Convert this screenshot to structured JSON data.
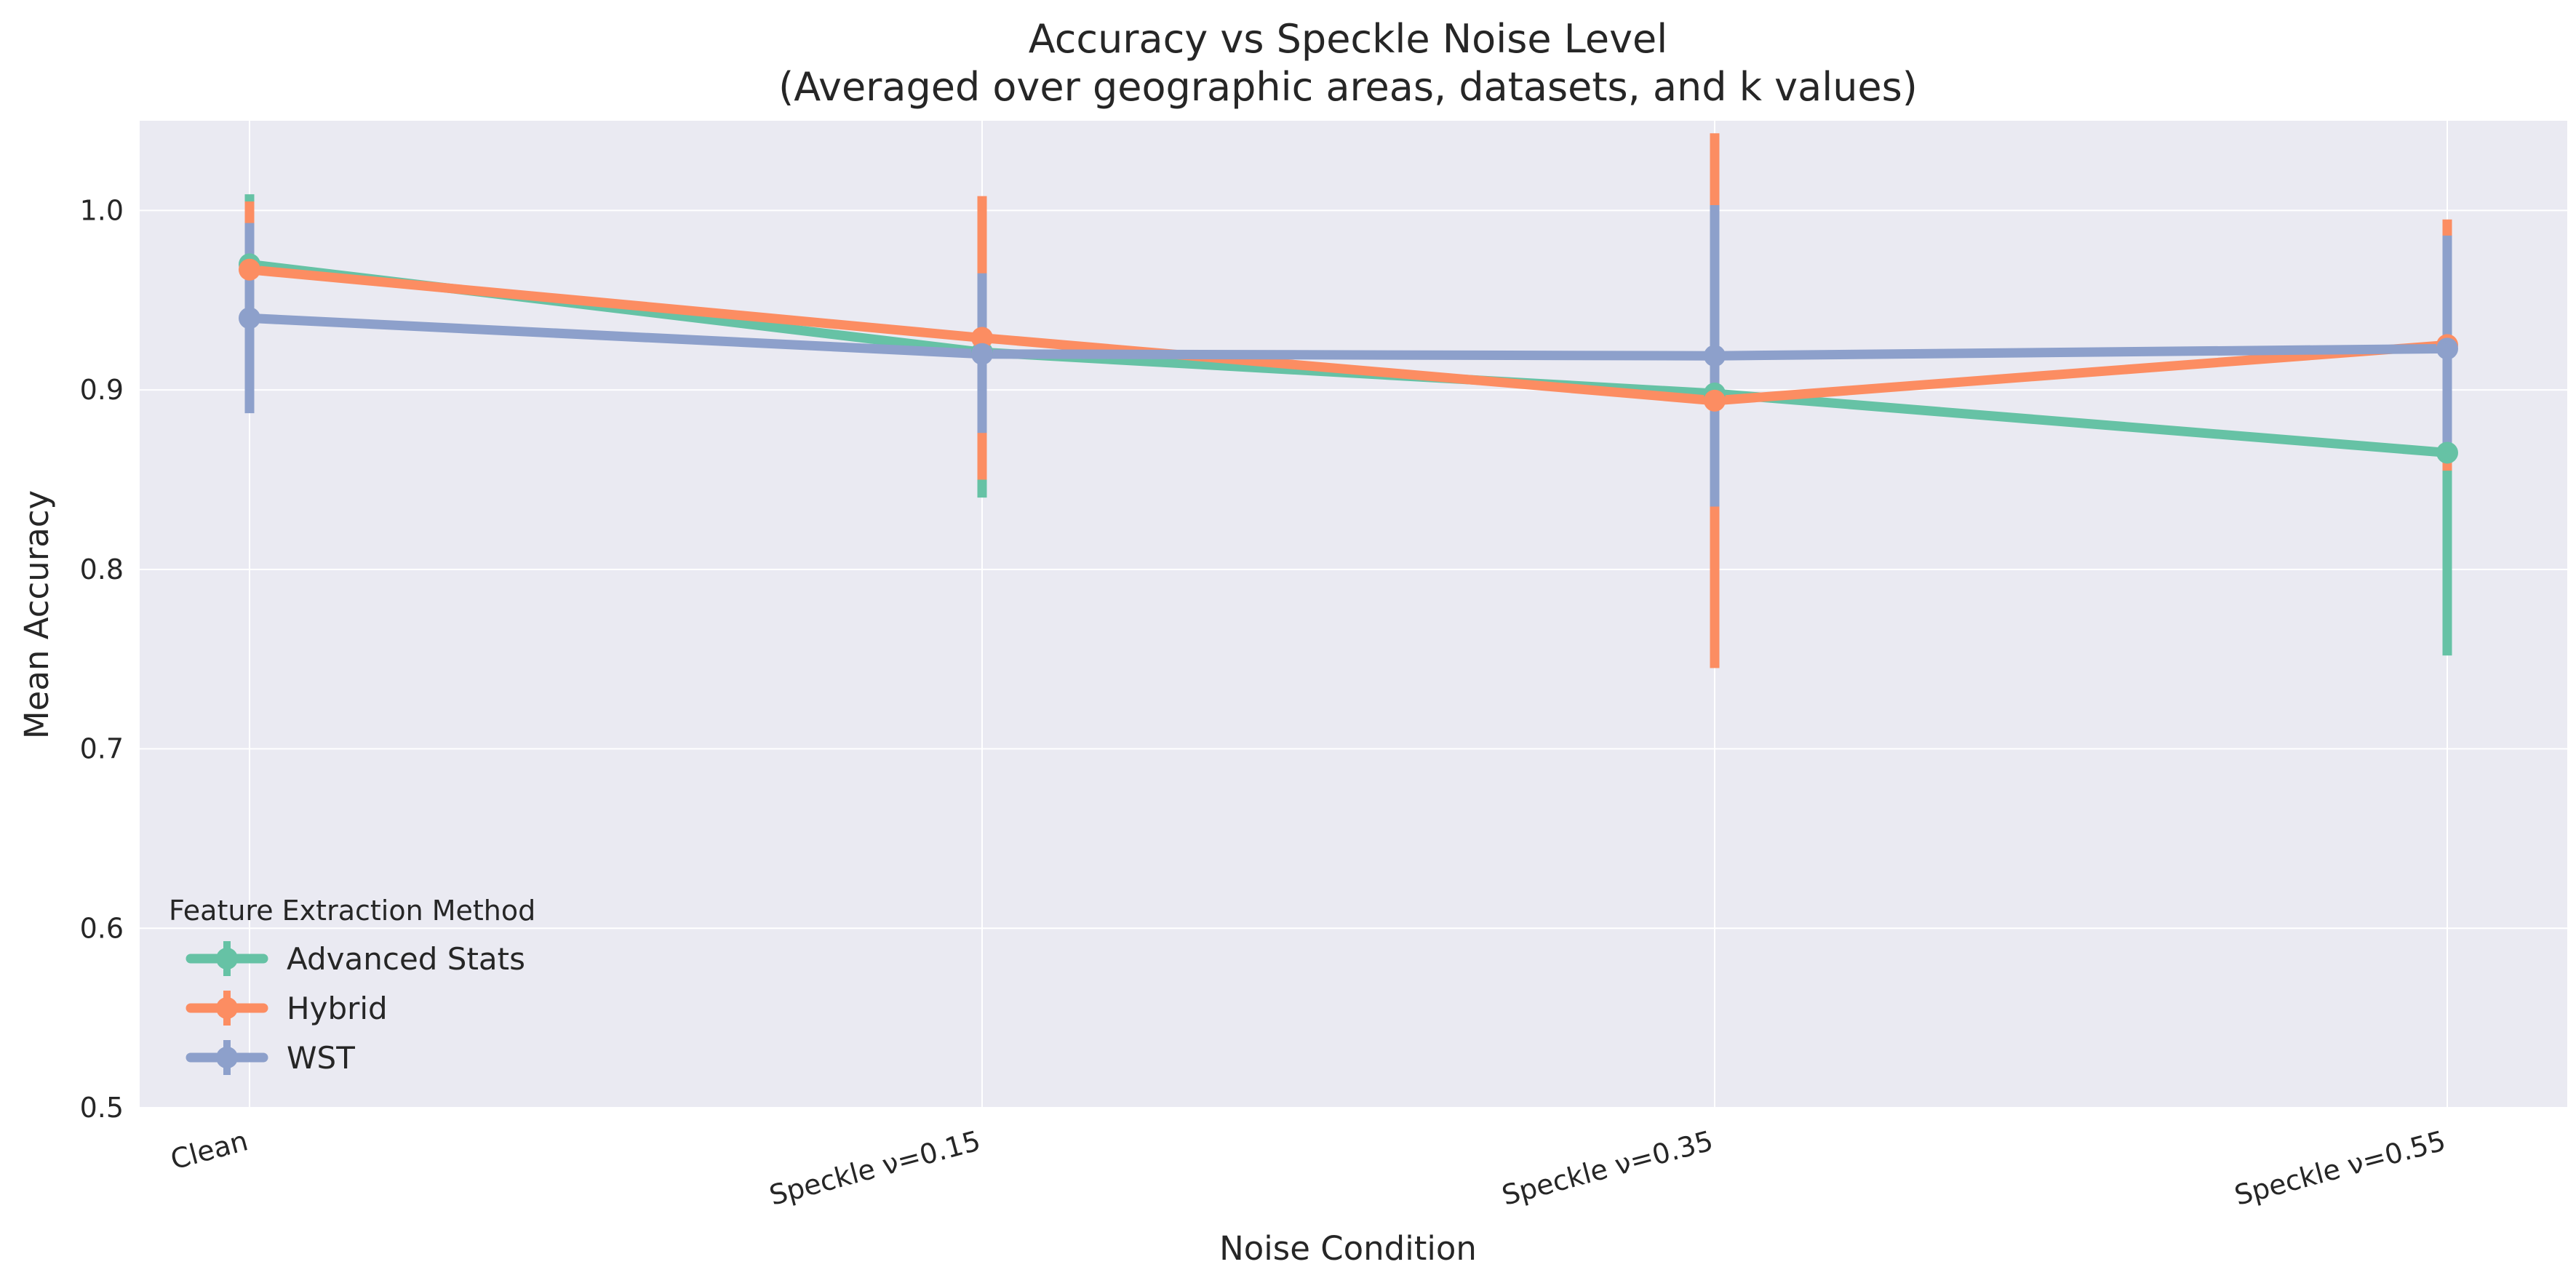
{
  "chart_data": {
    "type": "line",
    "title": "Accuracy vs Speckle Noise Level",
    "subtitle": "(Averaged over geographic areas, datasets, and k values)",
    "xlabel": "Noise Condition",
    "ylabel": "Mean Accuracy",
    "categories": [
      "Clean",
      "Speckle ν=0.15",
      "Speckle ν=0.35",
      "Speckle ν=0.55"
    ],
    "ylim": [
      0.5,
      1.05
    ],
    "yticks": [
      "0.5",
      "0.6",
      "0.7",
      "0.8",
      "0.9",
      "1.0"
    ],
    "grid": true,
    "legend": {
      "title": "Feature Extraction Method",
      "placement": "lower-left"
    },
    "series": [
      {
        "name": "Advanced Stats",
        "color": "#66c2a5",
        "values": [
          0.97,
          0.921,
          0.898,
          0.865
        ],
        "err_low": [
          0.929,
          0.84,
          0.893,
          0.752
        ],
        "err_high": [
          1.009,
          0.923,
          0.902,
          0.867
        ]
      },
      {
        "name": "Hybrid",
        "color": "#fc8d62",
        "values": [
          0.967,
          0.929,
          0.894,
          0.925
        ],
        "err_low": [
          0.929,
          0.85,
          0.745,
          0.855
        ],
        "err_high": [
          1.005,
          1.008,
          1.043,
          0.995
        ]
      },
      {
        "name": "WST",
        "color": "#8da0cb",
        "values": [
          0.94,
          0.92,
          0.919,
          0.923
        ],
        "err_low": [
          0.887,
          0.876,
          0.835,
          0.86
        ],
        "err_high": [
          0.993,
          0.965,
          1.003,
          0.986
        ]
      }
    ]
  }
}
